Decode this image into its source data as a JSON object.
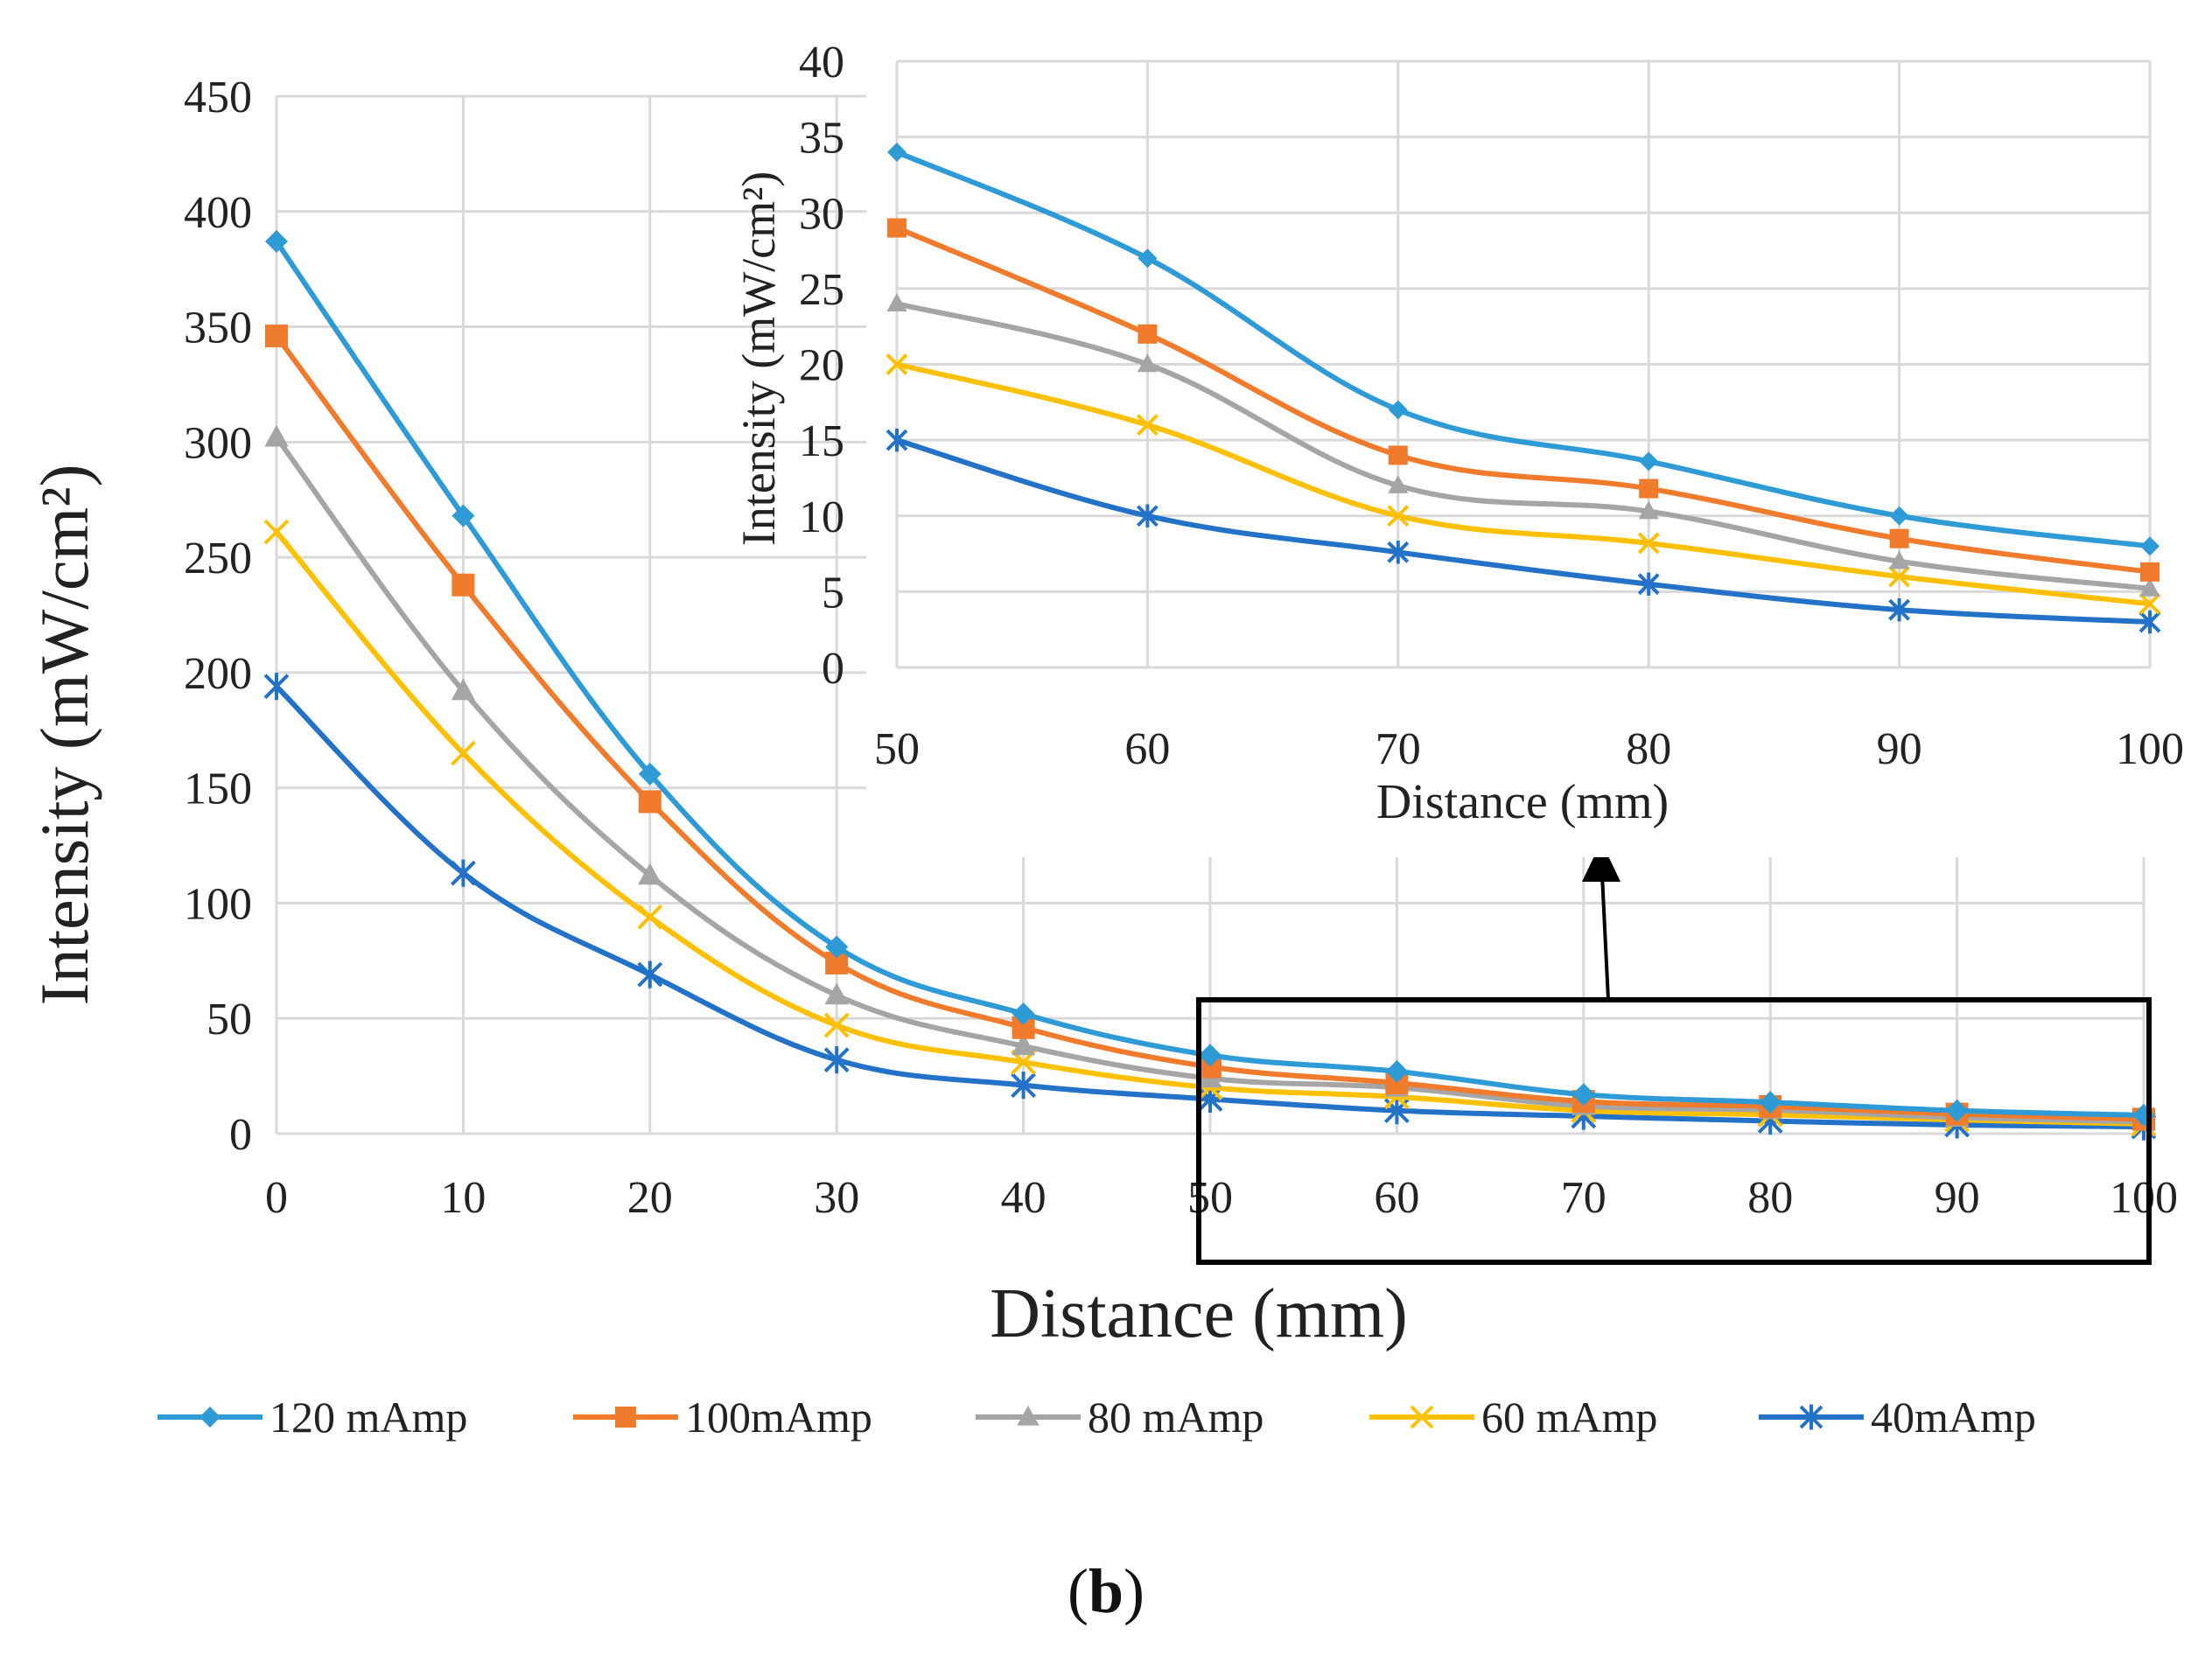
{
  "panel_label": {
    "open": "(",
    "letter": "b",
    "close": ")"
  },
  "legend_order": [
    0,
    1,
    2,
    3,
    4
  ],
  "chart_data": [
    {
      "id": "main",
      "type": "line",
      "title": "",
      "xlabel": "Distance (mm)",
      "ylabel": "Intensity (mW/cm²)",
      "x": [
        0,
        10,
        20,
        30,
        40,
        50,
        60,
        70,
        80,
        90,
        100
      ],
      "xlim": [
        0,
        100
      ],
      "ylim": [
        0,
        450
      ],
      "xticks": [
        0,
        10,
        20,
        30,
        40,
        50,
        60,
        70,
        80,
        90,
        100
      ],
      "yticks": [
        0,
        50,
        100,
        150,
        200,
        250,
        300,
        350,
        400,
        450
      ],
      "grid": true,
      "legend_position": "bottom",
      "series": [
        {
          "name": "120 mAmp",
          "color": "#2E9BD6",
          "marker": "diamond",
          "values": [
            387,
            268,
            156,
            81,
            52,
            34,
            27,
            17,
            13.6,
            10,
            8
          ]
        },
        {
          "name": "100mAmp",
          "color": "#F07B2D",
          "marker": "square",
          "values": [
            346,
            238,
            144,
            74,
            46,
            29,
            22,
            14,
            11.8,
            8.5,
            6.3
          ]
        },
        {
          "name": "80 mAmp",
          "color": "#A5A5A5",
          "marker": "triangle",
          "values": [
            302,
            192,
            112,
            60,
            38,
            24,
            20,
            12,
            10.3,
            7,
            5.2
          ]
        },
        {
          "name": "60 mAmp",
          "color": "#FFC000",
          "marker": "x",
          "values": [
            261,
            165,
            94,
            47,
            31,
            20,
            16,
            10,
            8.2,
            6,
            4.2
          ]
        },
        {
          "name": "40mAmp",
          "color": "#2472C8",
          "marker": "star",
          "values": [
            194,
            113,
            69,
            32,
            21,
            15,
            10,
            7.6,
            5.5,
            3.8,
            3
          ]
        }
      ]
    },
    {
      "id": "inset",
      "type": "line",
      "title": "",
      "xlabel": "Distance (mm)",
      "ylabel": "Intensity (mW/cm²)",
      "x": [
        50,
        60,
        70,
        80,
        90,
        100
      ],
      "xlim": [
        50,
        100
      ],
      "ylim": [
        0,
        40
      ],
      "xticks": [
        50,
        60,
        70,
        80,
        90,
        100
      ],
      "yticks": [
        0,
        5,
        10,
        15,
        20,
        25,
        30,
        35,
        40
      ],
      "grid": true,
      "annotation": "inset zoom of main chart from 50 to 100 mm",
      "series": [
        {
          "name": "120 mAmp",
          "color": "#2E9BD6",
          "marker": "diamond",
          "values": [
            34,
            27,
            17,
            13.6,
            10,
            8
          ]
        },
        {
          "name": "100mAmp",
          "color": "#F07B2D",
          "marker": "square",
          "values": [
            29,
            22,
            14,
            11.8,
            8.5,
            6.3
          ]
        },
        {
          "name": "80 mAmp",
          "color": "#A5A5A5",
          "marker": "triangle",
          "values": [
            24,
            20,
            12,
            10.3,
            7,
            5.2
          ]
        },
        {
          "name": "60 mAmp",
          "color": "#FFC000",
          "marker": "x",
          "values": [
            20,
            16,
            10,
            8.2,
            6,
            4.2
          ]
        },
        {
          "name": "40mAmp",
          "color": "#2472C8",
          "marker": "star",
          "values": [
            15,
            10,
            7.6,
            5.5,
            3.8,
            3
          ]
        }
      ]
    }
  ]
}
